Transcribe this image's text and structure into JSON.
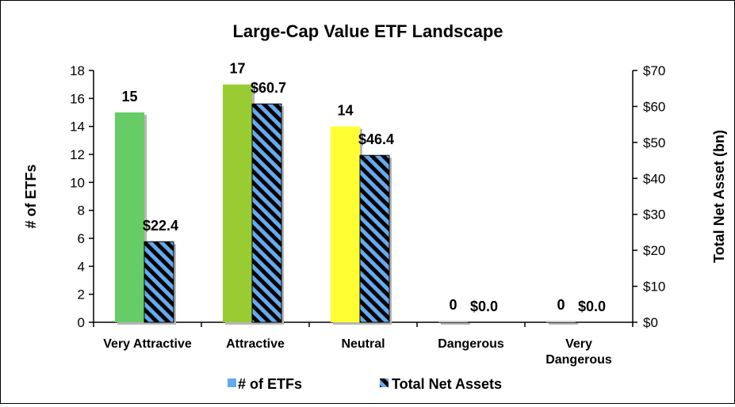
{
  "chart_data": {
    "type": "bar",
    "title": "Large-Cap Value ETF Landscape",
    "categories": [
      [
        "Very Attractive"
      ],
      [
        "Attractive"
      ],
      [
        "Neutral"
      ],
      [
        "Dangerous"
      ],
      [
        "Very",
        "Dangerous"
      ]
    ],
    "series": [
      {
        "name": "# of ETFs",
        "axis": "left",
        "values": [
          15,
          17,
          14,
          0,
          0
        ],
        "labels": [
          "15",
          "17",
          "14",
          "0",
          "0"
        ],
        "colors": [
          "#66cc66",
          "#99cc33",
          "#ffff33",
          "#cccccc",
          "#cccccc"
        ]
      },
      {
        "name": "Total Net Assets",
        "axis": "right",
        "values": [
          22.4,
          60.7,
          46.4,
          0.0,
          0.0
        ],
        "labels": [
          "$22.4",
          "$60.7",
          "$46.4",
          "$0.0",
          "$0.0"
        ],
        "pattern": "diagonal-stripes",
        "colors": [
          "#66aaee",
          "#000000"
        ]
      }
    ],
    "y_left": {
      "label": "# of ETFs",
      "min": 0,
      "max": 18,
      "ticks": [
        0,
        2,
        4,
        6,
        8,
        10,
        12,
        14,
        16,
        18
      ],
      "tick_labels": [
        "0",
        "2",
        "4",
        "6",
        "8",
        "10",
        "12",
        "14",
        "16",
        "18"
      ]
    },
    "y_right": {
      "label": "Total Net Asset (bn)",
      "min": 0,
      "max": 70,
      "ticks": [
        0,
        10,
        20,
        30,
        40,
        50,
        60,
        70
      ],
      "tick_labels": [
        "$0",
        "$10",
        "$20",
        "$30",
        "$40",
        "$50",
        "$60",
        "$70"
      ]
    },
    "grid": false,
    "legend": {
      "position": "bottom",
      "entries": [
        "# of ETFs",
        "Total Net Assets"
      ]
    }
  }
}
